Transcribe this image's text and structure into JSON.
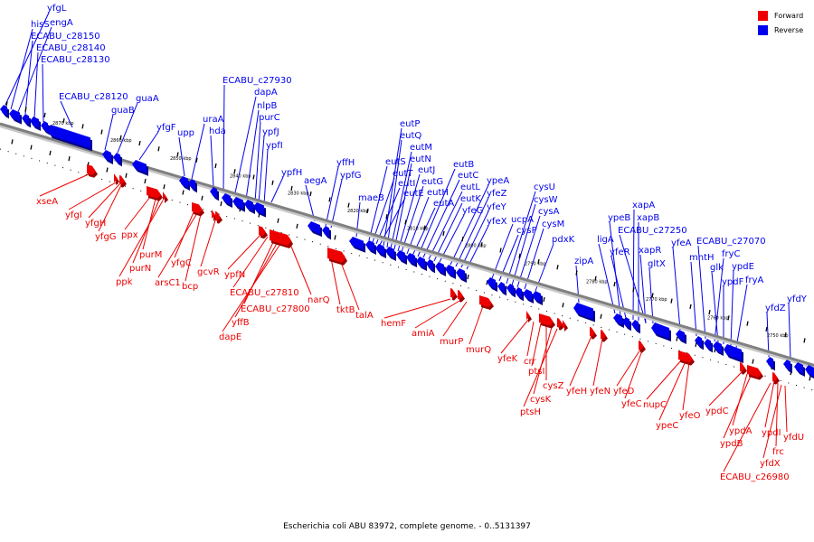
{
  "caption": "Escherichia coli ABU 83972, complete genome. - 0..5131397",
  "legend": [
    {
      "label": "Forward",
      "color": "#ee0000"
    },
    {
      "label": "Reverse",
      "color": "#0000ee"
    }
  ],
  "colors": {
    "forward": "#ee0000",
    "reverse": "#0000ee",
    "backbone": "#808080"
  },
  "scale_ticks": [
    "2870 kbp",
    "2860 kbp",
    "2850 kbp",
    "2840 kbp",
    "2830 kbp",
    "2820 kbp",
    "2810 kbp",
    "2800 kbp",
    "2790 kbp",
    "2780 kbp",
    "2770 kbp",
    "2760 kbp",
    "2750 kbp"
  ],
  "reverse_labels": [
    "yfgL",
    "hisS",
    "engA",
    "ECABU_c28150",
    "ECABU_c28140",
    "ECABU_c28130",
    "ECABU_c28120",
    "guaB",
    "guaA",
    "yfgF",
    "upp",
    "uraA",
    "hda",
    "ECABU_c27930",
    "dapA",
    "nlpB",
    "purC",
    "ypfJ",
    "ypfI",
    "ypfH",
    "aegA",
    "yffH",
    "ypfG",
    "maeB",
    "eutS",
    "eutT",
    "eutI",
    "eutE",
    "eutP",
    "eutQ",
    "eutM",
    "eutN",
    "eutJ",
    "eutG",
    "eutH",
    "eutA",
    "eutB",
    "eutC",
    "eutL",
    "eutK",
    "yfeG",
    "ypeA",
    "yfeZ",
    "yfeY",
    "yfeX",
    "ucpA",
    "cysP",
    "cysU",
    "cysW",
    "cysA",
    "cysM",
    "pdxK",
    "zipA",
    "ligA",
    "ypeB",
    "yfeR",
    "xapA",
    "xapB",
    "ECABU_c27250",
    "xapR",
    "gltX",
    "yfeA",
    "mntH",
    "ECABU_c27070",
    "fryC",
    "glk",
    "ypdF",
    "ypdE",
    "fryA",
    "yfdZ",
    "yfdY"
  ],
  "forward_labels": [
    "xseA",
    "yfgI",
    "yfgH",
    "yfgG",
    "ppx",
    "purM",
    "purN",
    "ppk",
    "yfgC",
    "arsC1",
    "bcp",
    "gcvR",
    "ypfN",
    "ECABU_c27810",
    "ECABU_c27800",
    "yffB",
    "dapE",
    "narQ",
    "tktB",
    "talA",
    "hemF",
    "amiA",
    "murP",
    "murQ",
    "yfeK",
    "crr",
    "ptsI",
    "cysZ",
    "cysK",
    "ptsH",
    "yfeH",
    "yfeN",
    "yfeD",
    "yfeC",
    "nupC",
    "ypeC",
    "yfeO",
    "ypdC",
    "ypdA",
    "ypdB",
    "ypdI",
    "frc",
    "yfdX",
    "yfdU",
    "ECABU_c26980"
  ]
}
